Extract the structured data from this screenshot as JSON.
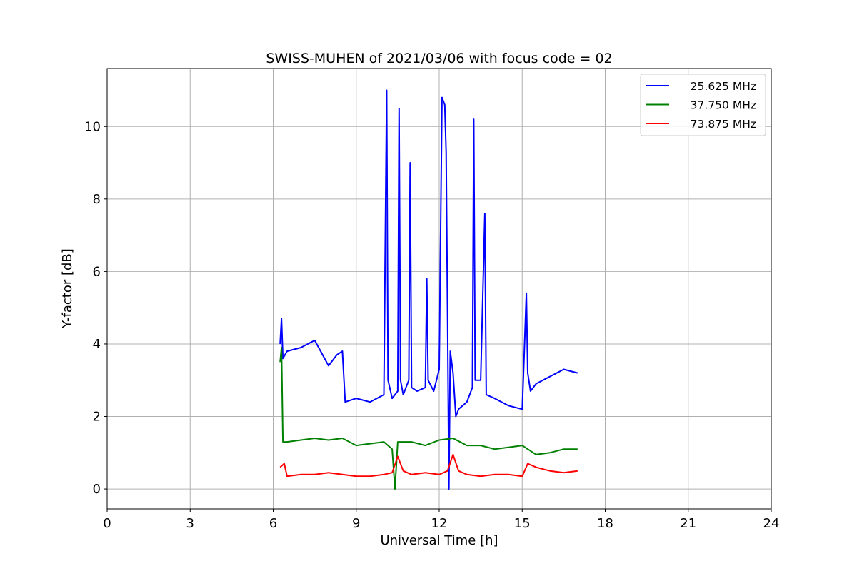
{
  "chart_data": {
    "type": "line",
    "title": "SWISS-MUHEN of 2021/03/06 with focus code = 02",
    "xlabel": "Universal Time [h]",
    "ylabel": "Y-factor [dB]",
    "xlim": [
      0,
      24
    ],
    "ylim": [
      -0.55,
      11.6
    ],
    "xticks": [
      0,
      3,
      6,
      9,
      12,
      15,
      18,
      21,
      24
    ],
    "yticks": [
      0,
      2,
      4,
      6,
      8,
      10
    ],
    "grid": true,
    "legend_position": "top-right",
    "series": [
      {
        "name": "25.625 MHz",
        "color": "#0000ff",
        "x": [
          6.25,
          6.3,
          6.35,
          6.5,
          7.0,
          7.5,
          8.0,
          8.3,
          8.5,
          8.6,
          9.0,
          9.5,
          10.0,
          10.1,
          10.15,
          10.3,
          10.5,
          10.55,
          10.6,
          10.7,
          10.9,
          10.95,
          11.0,
          11.2,
          11.5,
          11.55,
          11.6,
          11.8,
          12.0,
          12.1,
          12.2,
          12.25,
          12.3,
          12.35,
          12.4,
          12.5,
          12.6,
          12.7,
          13.0,
          13.2,
          13.25,
          13.3,
          13.5,
          13.65,
          13.7,
          14.0,
          14.5,
          15.0,
          15.15,
          15.2,
          15.3,
          15.5,
          16.0,
          16.5,
          17.0
        ],
        "y": [
          4.0,
          4.7,
          3.6,
          3.8,
          3.9,
          4.1,
          3.4,
          3.7,
          3.8,
          2.4,
          2.5,
          2.4,
          2.6,
          11.0,
          3.0,
          2.5,
          2.7,
          10.5,
          3.0,
          2.6,
          3.0,
          9.0,
          2.8,
          2.7,
          2.8,
          5.8,
          3.0,
          2.7,
          3.3,
          10.8,
          10.6,
          9.3,
          5.0,
          0.0,
          3.8,
          3.2,
          2.0,
          2.2,
          2.4,
          2.8,
          10.2,
          3.0,
          3.0,
          7.6,
          2.6,
          2.5,
          2.3,
          2.2,
          5.4,
          3.2,
          2.7,
          2.9,
          3.1,
          3.3,
          3.2
        ]
      },
      {
        "name": "37.750 MHz",
        "color": "#008000",
        "x": [
          6.25,
          6.3,
          6.35,
          6.5,
          7.0,
          7.5,
          8.0,
          8.5,
          9.0,
          9.5,
          10.0,
          10.3,
          10.4,
          10.5,
          11.0,
          11.5,
          12.0,
          12.5,
          13.0,
          13.5,
          14.0,
          14.5,
          15.0,
          15.5,
          16.0,
          16.5,
          17.0
        ],
        "y": [
          3.5,
          3.9,
          1.3,
          1.3,
          1.35,
          1.4,
          1.35,
          1.4,
          1.2,
          1.25,
          1.3,
          1.1,
          0.0,
          1.3,
          1.3,
          1.2,
          1.35,
          1.4,
          1.2,
          1.2,
          1.1,
          1.15,
          1.2,
          0.95,
          1.0,
          1.1,
          1.1
        ]
      },
      {
        "name": "73.875 MHz",
        "color": "#ff0000",
        "x": [
          6.25,
          6.4,
          6.5,
          7.0,
          7.5,
          8.0,
          8.5,
          9.0,
          9.5,
          10.0,
          10.3,
          10.5,
          10.7,
          11.0,
          11.5,
          12.0,
          12.3,
          12.5,
          12.7,
          13.0,
          13.5,
          14.0,
          14.5,
          15.0,
          15.2,
          15.5,
          16.0,
          16.5,
          17.0
        ],
        "y": [
          0.6,
          0.7,
          0.35,
          0.4,
          0.4,
          0.45,
          0.4,
          0.35,
          0.35,
          0.4,
          0.45,
          0.9,
          0.5,
          0.4,
          0.45,
          0.4,
          0.5,
          0.95,
          0.5,
          0.4,
          0.35,
          0.4,
          0.4,
          0.35,
          0.7,
          0.6,
          0.5,
          0.45,
          0.5
        ]
      }
    ]
  }
}
